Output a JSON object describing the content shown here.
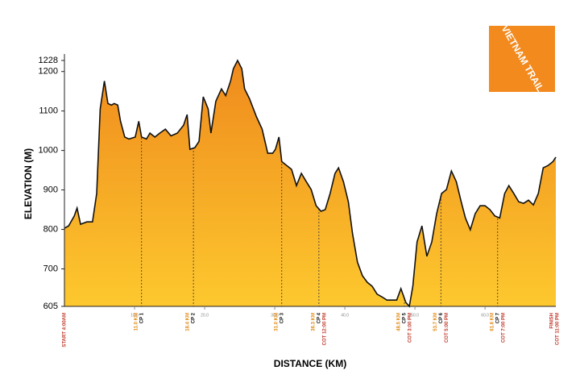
{
  "chart_data": {
    "type": "area",
    "y_label": "ELEVATION (M)",
    "x_label": "DISTANCE (KM)",
    "xlim": [
      0,
      70.1
    ],
    "ylim": [
      605,
      1228
    ],
    "yticks": [
      605,
      700,
      800,
      900,
      1000,
      1100,
      1200,
      1228
    ],
    "xticks": [
      {
        "value": 10,
        "label": "10.0"
      },
      {
        "value": 20,
        "label": "20.0"
      },
      {
        "value": 30,
        "label": "30.0"
      },
      {
        "value": 40,
        "label": "40.0"
      },
      {
        "value": 50,
        "label": "50.0"
      },
      {
        "value": 60,
        "label": "60.0"
      }
    ],
    "gradient": [
      "#ef8a1d",
      "#fdc82e"
    ],
    "x": [
      0,
      0.6,
      1.4,
      1.8,
      2.3,
      3.2,
      4.0,
      4.6,
      5.1,
      5.7,
      6.2,
      6.7,
      7.1,
      7.6,
      8.0,
      8.6,
      9.2,
      10.1,
      10.6,
      11.0,
      11.7,
      12.2,
      12.9,
      13.6,
      14.4,
      15.2,
      16.1,
      17.0,
      17.5,
      17.9,
      18.6,
      19.2,
      19.8,
      20.5,
      20.9,
      21.6,
      22.4,
      23.0,
      23.7,
      24.1,
      24.7,
      25.3,
      25.7,
      26.4,
      27.4,
      28.2,
      29.0,
      29.7,
      30.1,
      30.6,
      31.0,
      31.7,
      32.4,
      33.1,
      33.8,
      34.5,
      35.2,
      35.9,
      36.6,
      37.2,
      37.9,
      38.6,
      39.1,
      39.8,
      40.5,
      41.1,
      41.8,
      42.5,
      43.2,
      43.9,
      44.6,
      45.3,
      46.0,
      46.7,
      47.4,
      48.0,
      48.7,
      49.2,
      49.7,
      50.3,
      51.0,
      51.7,
      52.4,
      53.1,
      53.8,
      54.5,
      55.2,
      55.9,
      56.6,
      57.2,
      57.9,
      58.6,
      59.3,
      60.0,
      60.7,
      61.4,
      62.1,
      62.8,
      63.4,
      64.1,
      64.8,
      65.5,
      66.2,
      66.9,
      67.6,
      68.3,
      69.0,
      69.7,
      70.1
    ],
    "values": [
      803,
      809,
      834,
      854,
      813,
      819,
      819,
      891,
      1105,
      1176,
      1119,
      1115,
      1119,
      1115,
      1074,
      1034,
      1029,
      1034,
      1074,
      1034,
      1029,
      1044,
      1034,
      1044,
      1054,
      1037,
      1044,
      1064,
      1091,
      1003,
      1007,
      1023,
      1136,
      1105,
      1044,
      1125,
      1156,
      1139,
      1176,
      1207,
      1228,
      1207,
      1156,
      1131,
      1085,
      1054,
      993,
      993,
      1003,
      1034,
      972,
      962,
      952,
      911,
      942,
      921,
      901,
      860,
      846,
      850,
      891,
      942,
      956,
      921,
      870,
      789,
      717,
      683,
      666,
      656,
      636,
      629,
      621,
      621,
      621,
      650,
      615,
      605,
      656,
      768,
      809,
      732,
      768,
      840,
      891,
      901,
      948,
      921,
      870,
      829,
      799,
      840,
      860,
      860,
      850,
      834,
      829,
      891,
      911,
      891,
      870,
      866,
      874,
      862,
      891,
      956,
      962,
      972,
      983
    ],
    "start_label": "START 4:00AM",
    "finish_label": "FINISH",
    "finish_cot": "COT 11:00 PM",
    "checkpoints": [
      {
        "distance": {
          "value": 11.0,
          "label": "11.0 KM"
        },
        "name": "CP 1"
      },
      {
        "distance": {
          "value": 18.4,
          "label": "18.4 KM"
        },
        "name": "CP 2"
      },
      {
        "distance": {
          "value": 31.0,
          "label": "31.0 KM"
        },
        "name": "CP 3"
      },
      {
        "distance": {
          "value": 36.3,
          "label": "36.3 KM"
        },
        "name": "CP 4",
        "cot": "COT 12:00 PM"
      },
      {
        "distance": {
          "value": 48.5,
          "label": "48.5 KM"
        },
        "name": "CP 5",
        "cot": "COT 3:00 PM"
      },
      {
        "distance": {
          "value": 53.7,
          "label": "53.7 KM"
        },
        "name": "CP 6",
        "cot": "COT 5:00 PM"
      },
      {
        "distance": {
          "value": 61.8,
          "label": "61.8 KM"
        },
        "name": "CP 7",
        "cot": "COT 7:00 PM"
      }
    ]
  },
  "logo": {
    "text": "VIETNAM TRAIL",
    "color": "#f28a1e"
  }
}
